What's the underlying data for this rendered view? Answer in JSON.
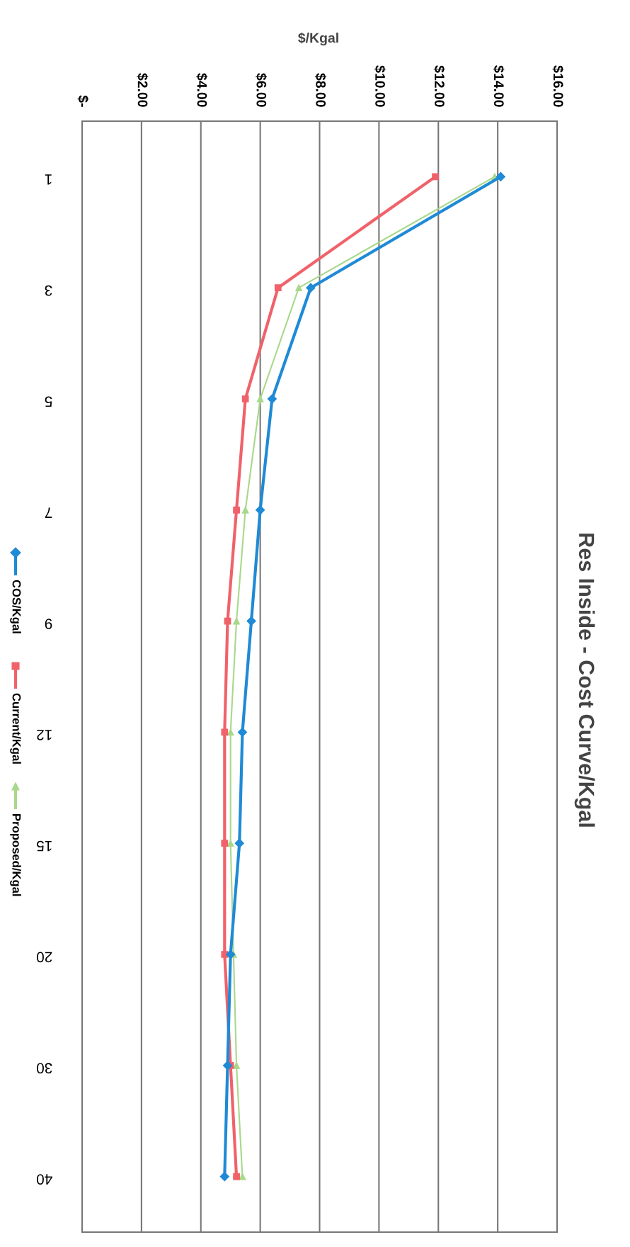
{
  "chart_data": {
    "type": "line",
    "orientation": "horizontal",
    "title": "Res Inside - Cost Curve/Kgal",
    "xlabel": "$/Kgal",
    "categories": [
      "1",
      "3",
      "5",
      "7",
      "9",
      "12",
      "15",
      "20",
      "30",
      "40"
    ],
    "series": [
      {
        "name": "COS/Kgal",
        "color": "#1f8ad6",
        "marker": "diamond",
        "values": [
          14.1,
          7.7,
          6.4,
          6.0,
          5.7,
          5.4,
          5.3,
          5.0,
          4.9,
          4.8
        ]
      },
      {
        "name": "Current/Kgal",
        "color": "#f0626a",
        "marker": "square",
        "values": [
          11.9,
          6.6,
          5.5,
          5.2,
          4.9,
          4.8,
          4.8,
          4.8,
          5.0,
          5.2
        ]
      },
      {
        "name": "Proposed/Kgal",
        "color": "#a8d88a",
        "marker": "triangle",
        "values": [
          13.9,
          7.3,
          6.0,
          5.5,
          5.2,
          5.0,
          5.0,
          5.1,
          5.2,
          5.4
        ]
      }
    ],
    "xlim": [
      0,
      16
    ],
    "xticks": [
      {
        "value": 0,
        "label": "$-"
      },
      {
        "value": 2,
        "label": "$2.00"
      },
      {
        "value": 4,
        "label": "$4.00"
      },
      {
        "value": 6,
        "label": "$6.00"
      },
      {
        "value": 8,
        "label": "$8.00"
      },
      {
        "value": 10,
        "label": "$10.00"
      },
      {
        "value": 12,
        "label": "$12.00"
      },
      {
        "value": 14,
        "label": "$14.00"
      },
      {
        "value": 16,
        "label": "$16.00"
      }
    ],
    "grid": "x",
    "legend": "left",
    "line_style": "solid"
  }
}
